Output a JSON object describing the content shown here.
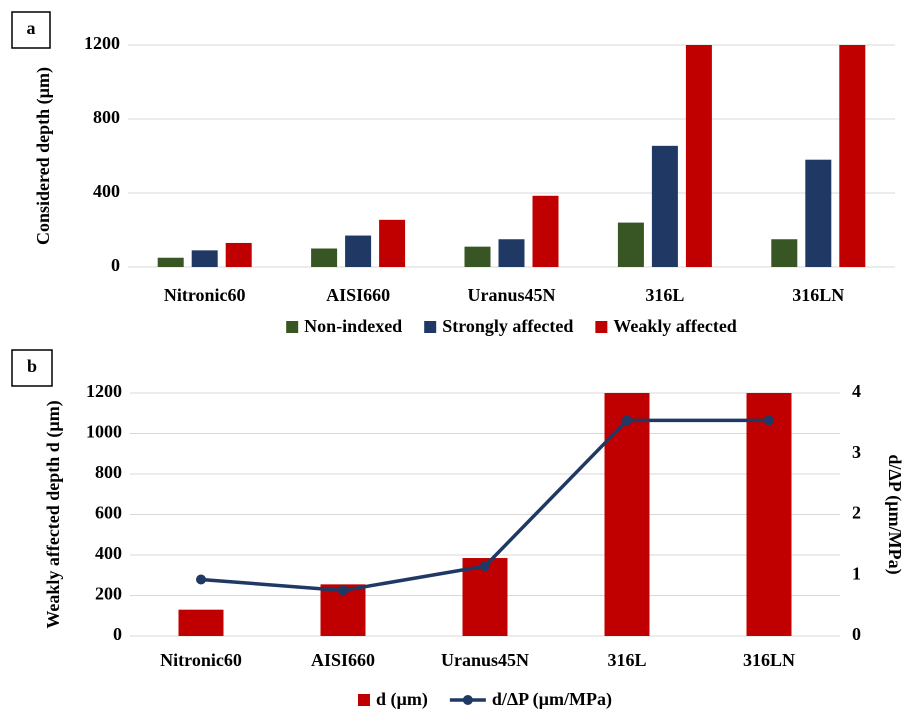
{
  "chart_data": [
    {
      "type": "bar",
      "panel_label": "a",
      "y_label": "Considered depth (µm)",
      "categories": [
        "Nitronic60",
        "AISI660",
        "Uranus45N",
        "316L",
        "316LN"
      ],
      "ylim": [
        0,
        1200
      ],
      "yticks": [
        0,
        400,
        800,
        1200
      ],
      "grid": true,
      "series": [
        {
          "name": "Non-indexed",
          "color": "#375623",
          "values": [
            50,
            100,
            110,
            240,
            150
          ]
        },
        {
          "name": "Strongly affected",
          "color": "#1f3864",
          "values": [
            90,
            170,
            150,
            655,
            580
          ]
        },
        {
          "name": "Weakly affected",
          "color": "#c00000",
          "values": [
            130,
            255,
            385,
            1200,
            1200
          ]
        }
      ]
    },
    {
      "type": "bar",
      "panel_label": "b",
      "y_label": "Weakly affected depth d (µm)",
      "y2_label": "d/ΔP (µm/MPa)",
      "categories": [
        "Nitronic60",
        "AISI660",
        "Uranus45N",
        "316L",
        "316LN"
      ],
      "ylim": [
        0,
        1200
      ],
      "yticks": [
        0,
        200,
        400,
        600,
        800,
        1000,
        1200
      ],
      "y2lim": [
        0,
        4
      ],
      "y2ticks": [
        0,
        1,
        2,
        3,
        4
      ],
      "grid": true,
      "series": [
        {
          "name": "d (µm)",
          "color": "#c00000",
          "values": [
            130,
            255,
            385,
            1200,
            1200
          ]
        },
        {
          "name": "d/ΔP (µm/MPa)",
          "type": "line",
          "axis": "y2",
          "color": "#1f3864",
          "values": [
            0.93,
            0.75,
            1.15,
            3.55,
            3.55
          ]
        }
      ]
    }
  ]
}
